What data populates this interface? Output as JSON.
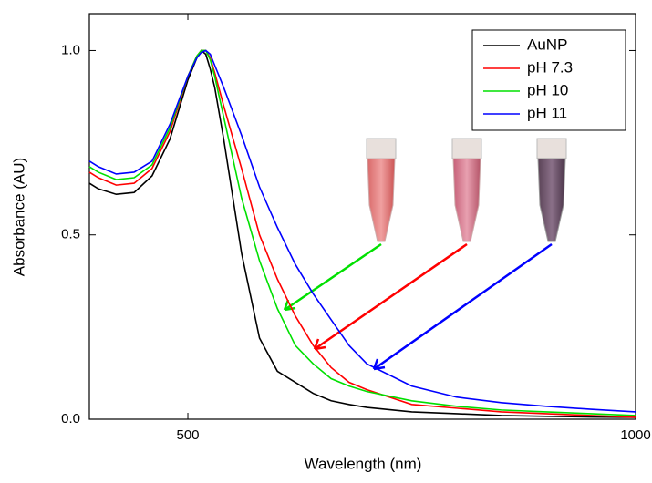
{
  "chart_data": {
    "type": "line",
    "x_label": "Wavelength (nm)",
    "y_label": "Absorbance (AU)",
    "x": [
      390,
      400,
      420,
      440,
      460,
      480,
      500,
      510,
      515,
      520,
      525,
      530,
      540,
      560,
      580,
      600,
      620,
      640,
      660,
      680,
      700,
      750,
      800,
      850,
      900,
      950,
      1000
    ],
    "series": [
      {
        "name": "AuNP",
        "color": "#000000",
        "values": [
          0.64,
          0.625,
          0.61,
          0.615,
          0.66,
          0.76,
          0.92,
          0.98,
          1.0,
          0.99,
          0.95,
          0.9,
          0.76,
          0.45,
          0.22,
          0.13,
          0.1,
          0.07,
          0.05,
          0.04,
          0.032,
          0.02,
          0.015,
          0.01,
          0.008,
          0.006,
          0.005
        ]
      },
      {
        "name": "pH 7.3",
        "color": "#ff0000",
        "values": [
          0.67,
          0.655,
          0.635,
          0.64,
          0.68,
          0.78,
          0.93,
          0.985,
          1.0,
          1.0,
          0.98,
          0.94,
          0.85,
          0.68,
          0.5,
          0.38,
          0.28,
          0.2,
          0.14,
          0.1,
          0.08,
          0.04,
          0.03,
          0.02,
          0.015,
          0.01,
          0.005
        ]
      },
      {
        "name": "pH 10",
        "color": "#00e000",
        "values": [
          0.685,
          0.67,
          0.65,
          0.655,
          0.69,
          0.79,
          0.93,
          0.985,
          1.0,
          1.0,
          0.975,
          0.93,
          0.82,
          0.6,
          0.43,
          0.3,
          0.2,
          0.15,
          0.11,
          0.09,
          0.075,
          0.05,
          0.035,
          0.025,
          0.02,
          0.015,
          0.01
        ]
      },
      {
        "name": "pH 11",
        "color": "#0000ff",
        "values": [
          0.7,
          0.685,
          0.665,
          0.67,
          0.7,
          0.8,
          0.93,
          0.98,
          0.995,
          1.0,
          0.99,
          0.96,
          0.9,
          0.77,
          0.63,
          0.52,
          0.42,
          0.34,
          0.27,
          0.2,
          0.15,
          0.09,
          0.06,
          0.045,
          0.035,
          0.027,
          0.02
        ]
      }
    ],
    "xlim": [
      390,
      1000
    ],
    "ylim": [
      0,
      1.1
    ],
    "xticks": [
      500,
      1000
    ],
    "yticks": [
      {
        "value": 0,
        "label": "0.0"
      },
      0.5,
      {
        "value": 1,
        "label": "1.0"
      }
    ],
    "legend": "top-right"
  }
}
